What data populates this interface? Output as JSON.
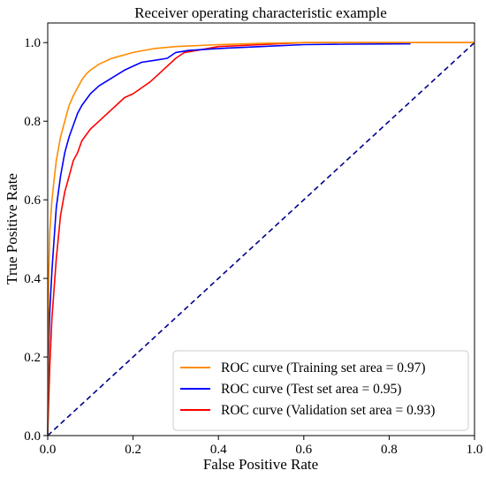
{
  "chart_data": {
    "type": "line",
    "title": "Receiver operating characteristic example",
    "xlabel": "False Positive Rate",
    "ylabel": "True Positive Rate",
    "xlim": [
      0.0,
      1.0
    ],
    "ylim": [
      0.0,
      1.05
    ],
    "x_ticks": [
      "0.0",
      "0.2",
      "0.4",
      "0.6",
      "0.8",
      "1.0"
    ],
    "y_ticks": [
      "0.0",
      "0.2",
      "0.4",
      "0.6",
      "0.8",
      "1.0"
    ],
    "grid": false,
    "legend_position": "lower-right",
    "series": [
      {
        "name": "ROC curve (Training set area = 0.97)",
        "color": "#ff8c00",
        "x": [
          0,
          0.002,
          0.005,
          0.01,
          0.015,
          0.02,
          0.03,
          0.04,
          0.05,
          0.06,
          0.07,
          0.08,
          0.09,
          0.1,
          0.12,
          0.15,
          0.2,
          0.25,
          0.3,
          0.4,
          0.5,
          0.6,
          0.7,
          0.8,
          0.9,
          1.0
        ],
        "y": [
          0,
          0.4,
          0.52,
          0.6,
          0.65,
          0.7,
          0.76,
          0.8,
          0.84,
          0.865,
          0.885,
          0.905,
          0.92,
          0.93,
          0.945,
          0.96,
          0.975,
          0.985,
          0.99,
          0.995,
          0.998,
          1.0,
          1.0,
          1.0,
          1.0,
          1.0
        ]
      },
      {
        "name": "ROC curve (Test set area = 0.95)",
        "color": "#0000ff",
        "x": [
          0,
          0.002,
          0.005,
          0.01,
          0.015,
          0.02,
          0.03,
          0.04,
          0.05,
          0.06,
          0.07,
          0.08,
          0.1,
          0.12,
          0.15,
          0.18,
          0.2,
          0.22,
          0.25,
          0.28,
          0.3,
          0.33,
          0.4,
          0.5,
          0.6,
          0.7,
          0.85
        ],
        "y": [
          0,
          0.2,
          0.32,
          0.42,
          0.5,
          0.58,
          0.66,
          0.72,
          0.76,
          0.79,
          0.82,
          0.84,
          0.87,
          0.89,
          0.91,
          0.93,
          0.94,
          0.95,
          0.955,
          0.96,
          0.975,
          0.98,
          0.985,
          0.99,
          0.995,
          0.996,
          0.997
        ]
      },
      {
        "name": "ROC curve (Validation set area = 0.93)",
        "color": "#ff0000",
        "x": [
          0,
          0.002,
          0.005,
          0.01,
          0.02,
          0.03,
          0.04,
          0.05,
          0.06,
          0.07,
          0.08,
          0.1,
          0.12,
          0.14,
          0.16,
          0.18,
          0.2,
          0.22,
          0.24,
          0.26,
          0.28,
          0.3,
          0.32,
          0.35,
          0.4,
          0.5,
          0.6,
          0.8,
          1.0
        ],
        "y": [
          0,
          0.08,
          0.18,
          0.3,
          0.45,
          0.56,
          0.62,
          0.66,
          0.7,
          0.72,
          0.75,
          0.78,
          0.8,
          0.82,
          0.84,
          0.86,
          0.87,
          0.885,
          0.9,
          0.92,
          0.94,
          0.96,
          0.975,
          0.98,
          0.99,
          0.995,
          1.0,
          1.0,
          1.0
        ]
      }
    ],
    "reference_line": {
      "x": [
        0,
        1
      ],
      "y": [
        0,
        1
      ],
      "color": "#00008b",
      "style": "dashed"
    }
  }
}
